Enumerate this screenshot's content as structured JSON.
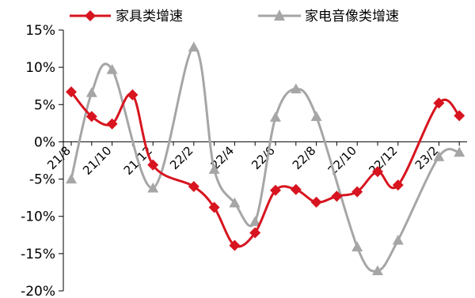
{
  "chart_data": {
    "type": "line",
    "title": "",
    "xlabel": "",
    "ylabel": "",
    "ylim": [
      -0.2,
      0.15
    ],
    "y_ticks": [
      0.15,
      0.1,
      0.05,
      0.0,
      -0.05,
      -0.1,
      -0.15,
      -0.2
    ],
    "y_tick_labels": [
      "15%",
      "10%",
      "5%",
      "0%",
      "-5%",
      "-10%",
      "-15%",
      "-20%"
    ],
    "x": [
      "21/8",
      "21/9",
      "21/10",
      "21/11",
      "21/12",
      "22/1",
      "22/2",
      "22/3",
      "22/4",
      "22/5",
      "22/6",
      "22/7",
      "22/8",
      "22/9",
      "22/10",
      "22/11",
      "22/12",
      "23/1",
      "23/2",
      "23/3",
      "23/4"
    ],
    "x_tick_labels": [
      "21/8",
      "21/10",
      "21/12",
      "22/2",
      "22/4",
      "22/6",
      "22/8",
      "22/10",
      "22/12",
      "23/2"
    ],
    "grid": false,
    "legend_position": "top",
    "series": [
      {
        "name": "家具类增速",
        "color": "#d7141f",
        "marker": "diamond",
        "smooth": true,
        "values": [
          0.067,
          0.034,
          0.024,
          0.063,
          -0.031,
          null,
          -0.06,
          -0.088,
          -0.139,
          -0.122,
          -0.065,
          -0.064,
          -0.081,
          -0.073,
          -0.067,
          -0.04,
          -0.058,
          null,
          0.052,
          0.035,
          null
        ]
      },
      {
        "name": "家电音像类增速",
        "color": "#a6a6a6",
        "marker": "triangle",
        "smooth": true,
        "values": [
          -0.05,
          0.066,
          0.097,
          null,
          -0.062,
          null,
          0.127,
          -0.037,
          -0.082,
          -0.107,
          0.033,
          0.071,
          0.034,
          null,
          -0.141,
          -0.173,
          -0.132,
          null,
          -0.02,
          -0.014,
          null
        ]
      }
    ]
  }
}
